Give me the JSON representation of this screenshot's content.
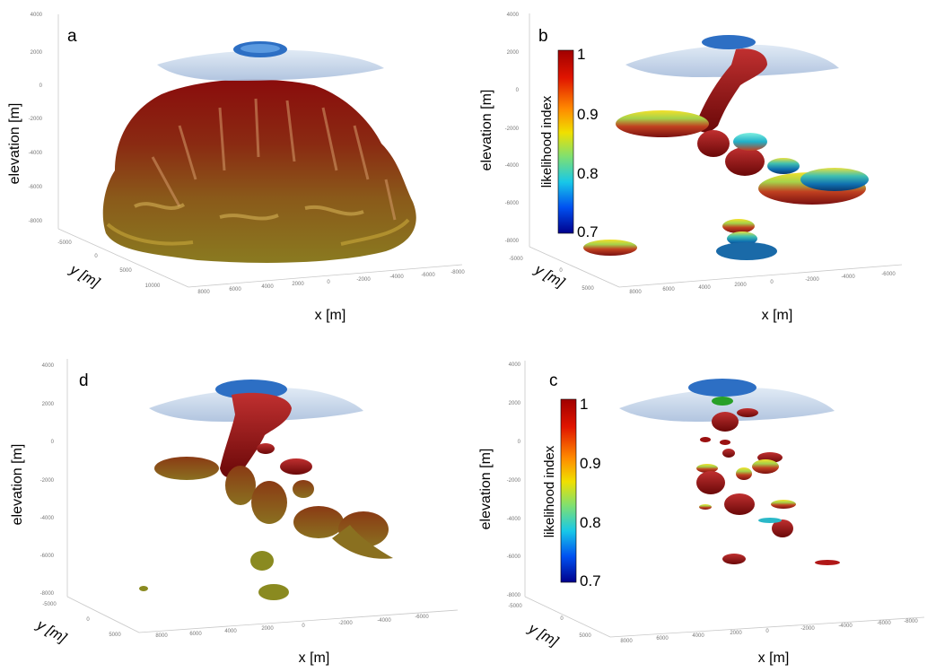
{
  "figure": {
    "panels": [
      {
        "letter": "a",
        "zlabel": "elevation [m]",
        "ylabel": "y [m]",
        "xlabel": "x [m]",
        "z_ticks": [
          "4000",
          "2000",
          "0",
          "-2000",
          "-4000",
          "-6000",
          "-8000"
        ],
        "y_ticks": [
          "-5000",
          "0",
          "5000",
          "10000"
        ],
        "x_ticks": [
          "8000",
          "6000",
          "4000",
          "2000",
          "0",
          "-2000",
          "-4000",
          "-6000",
          "-8000"
        ]
      },
      {
        "letter": "b",
        "zlabel": "elevation [m]",
        "ylabel": "y [m]",
        "xlabel": "x [m]",
        "z_ticks": [
          "4000",
          "2000",
          "0",
          "-2000",
          "-4000",
          "-6000",
          "-8000"
        ],
        "y_ticks": [
          "-5000",
          "0",
          "5000"
        ],
        "x_ticks": [
          "8000",
          "6000",
          "4000",
          "2000",
          "0",
          "-2000",
          "-4000",
          "-6000"
        ]
      },
      {
        "letter": "d",
        "zlabel": "elevation [m]",
        "ylabel": "y [m]",
        "xlabel": "x [m]",
        "z_ticks": [
          "4000",
          "2000",
          "0",
          "-2000",
          "-4000",
          "-6000",
          "-8000"
        ],
        "y_ticks": [
          "-5000",
          "0",
          "5000"
        ],
        "x_ticks": [
          "8000",
          "6000",
          "4000",
          "2000",
          "0",
          "-2000",
          "-4000",
          "-6000"
        ]
      },
      {
        "letter": "c",
        "zlabel": "elevation [m]",
        "ylabel": "y [m]",
        "xlabel": "x [m]",
        "z_ticks": [
          "4000",
          "2000",
          "0",
          "-2000",
          "-4000",
          "-6000",
          "-8000"
        ],
        "y_ticks": [
          "-5000",
          "0",
          "5000"
        ],
        "x_ticks": [
          "8000",
          "6000",
          "4000",
          "2000",
          "0",
          "-2000",
          "-4000",
          "-6000",
          "-8000"
        ]
      }
    ],
    "colorbar": {
      "label": "likelihood index",
      "ticks": [
        "1",
        "0.9",
        "0.8",
        "0.7"
      ],
      "colors": [
        "#a50000",
        "#e81400",
        "#ff8c00",
        "#f0e000",
        "#7fe070",
        "#20c0e0",
        "#0060ff",
        "#0000a0"
      ]
    }
  }
}
